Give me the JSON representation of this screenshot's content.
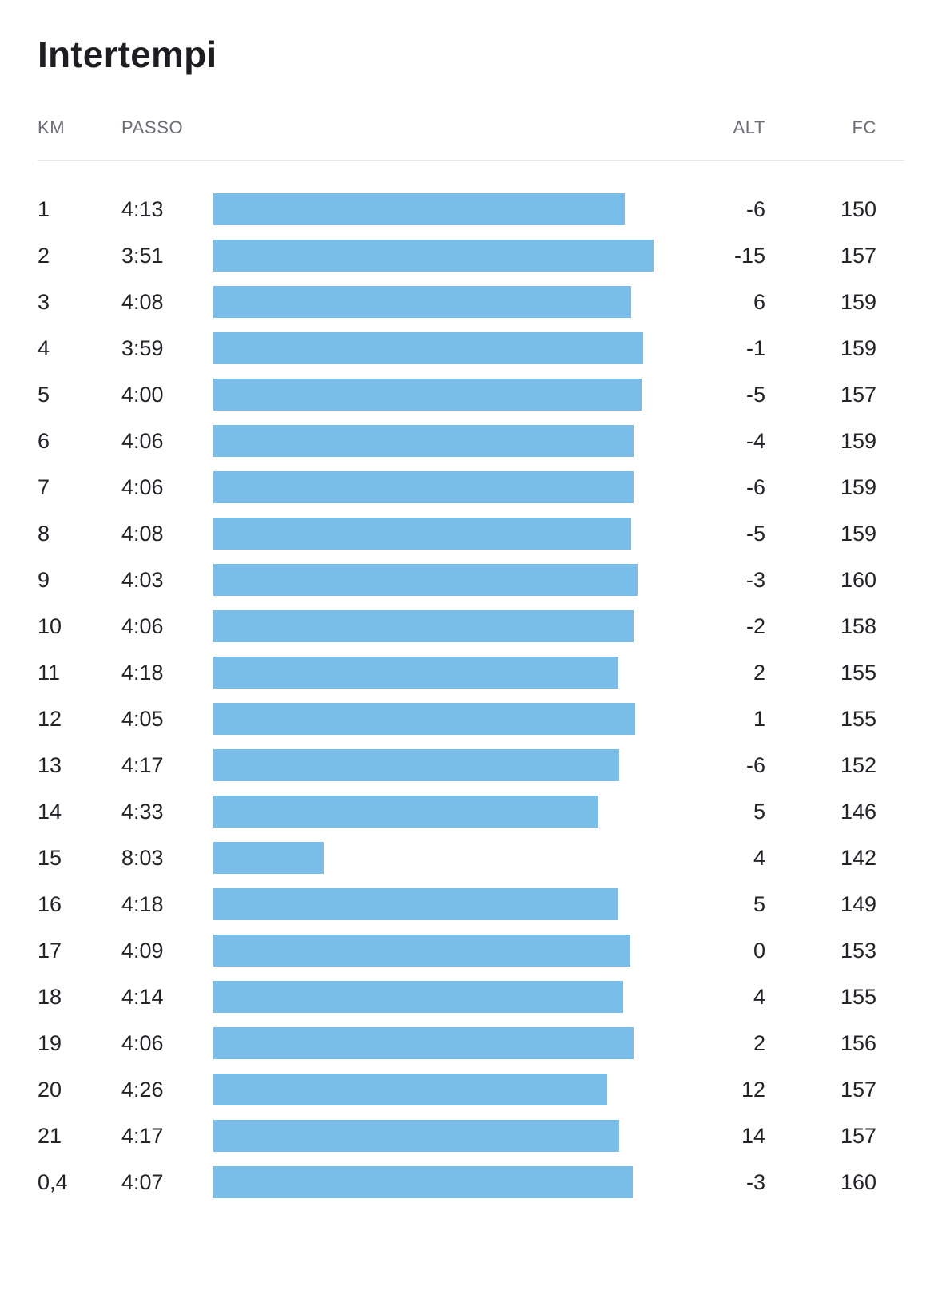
{
  "page": {
    "title": "Intertempi"
  },
  "colors": {
    "bar": "#79bee9",
    "header_text": "#6c6c76",
    "row_text": "#232329",
    "divider": "#e5e5ea"
  },
  "table": {
    "headers": {
      "km": "KM",
      "passo": "PASSO",
      "alt": "ALT",
      "fc": "FC"
    },
    "rows": [
      {
        "km": "1",
        "passo": "4:13",
        "bar_pct": 92.8,
        "alt": "-6",
        "fc": "150"
      },
      {
        "km": "2",
        "passo": "3:51",
        "bar_pct": 99.3,
        "alt": "-15",
        "fc": "157"
      },
      {
        "km": "3",
        "passo": "4:08",
        "bar_pct": 94.3,
        "alt": "6",
        "fc": "159"
      },
      {
        "km": "4",
        "passo": "3:59",
        "bar_pct": 96.9,
        "alt": "-1",
        "fc": "159"
      },
      {
        "km": "5",
        "passo": "4:00",
        "bar_pct": 96.6,
        "alt": "-5",
        "fc": "157"
      },
      {
        "km": "6",
        "passo": "4:06",
        "bar_pct": 94.8,
        "alt": "-4",
        "fc": "159"
      },
      {
        "km": "7",
        "passo": "4:06",
        "bar_pct": 94.8,
        "alt": "-6",
        "fc": "159"
      },
      {
        "km": "8",
        "passo": "4:08",
        "bar_pct": 94.3,
        "alt": "-5",
        "fc": "159"
      },
      {
        "km": "9",
        "passo": "4:03",
        "bar_pct": 95.7,
        "alt": "-3",
        "fc": "160"
      },
      {
        "km": "10",
        "passo": "4:06",
        "bar_pct": 94.8,
        "alt": "-2",
        "fc": "158"
      },
      {
        "km": "11",
        "passo": "4:18",
        "bar_pct": 91.3,
        "alt": "2",
        "fc": "155"
      },
      {
        "km": "12",
        "passo": "4:05",
        "bar_pct": 95.1,
        "alt": "1",
        "fc": "155"
      },
      {
        "km": "13",
        "passo": "4:17",
        "bar_pct": 91.6,
        "alt": "-6",
        "fc": "152"
      },
      {
        "km": "14",
        "passo": "4:33",
        "bar_pct": 86.9,
        "alt": "5",
        "fc": "146"
      },
      {
        "km": "15",
        "passo": "8:03",
        "bar_pct": 24.9,
        "alt": "4",
        "fc": "142"
      },
      {
        "km": "16",
        "passo": "4:18",
        "bar_pct": 91.3,
        "alt": "5",
        "fc": "149"
      },
      {
        "km": "17",
        "passo": "4:09",
        "bar_pct": 94.0,
        "alt": "0",
        "fc": "153"
      },
      {
        "km": "18",
        "passo": "4:14",
        "bar_pct": 92.5,
        "alt": "4",
        "fc": "155"
      },
      {
        "km": "19",
        "passo": "4:06",
        "bar_pct": 94.8,
        "alt": "2",
        "fc": "156"
      },
      {
        "km": "20",
        "passo": "4:26",
        "bar_pct": 88.9,
        "alt": "12",
        "fc": "157"
      },
      {
        "km": "21",
        "passo": "4:17",
        "bar_pct": 91.6,
        "alt": "14",
        "fc": "157"
      },
      {
        "km": "0,4",
        "passo": "4:07",
        "bar_pct": 94.6,
        "alt": "-3",
        "fc": "160"
      }
    ]
  }
}
